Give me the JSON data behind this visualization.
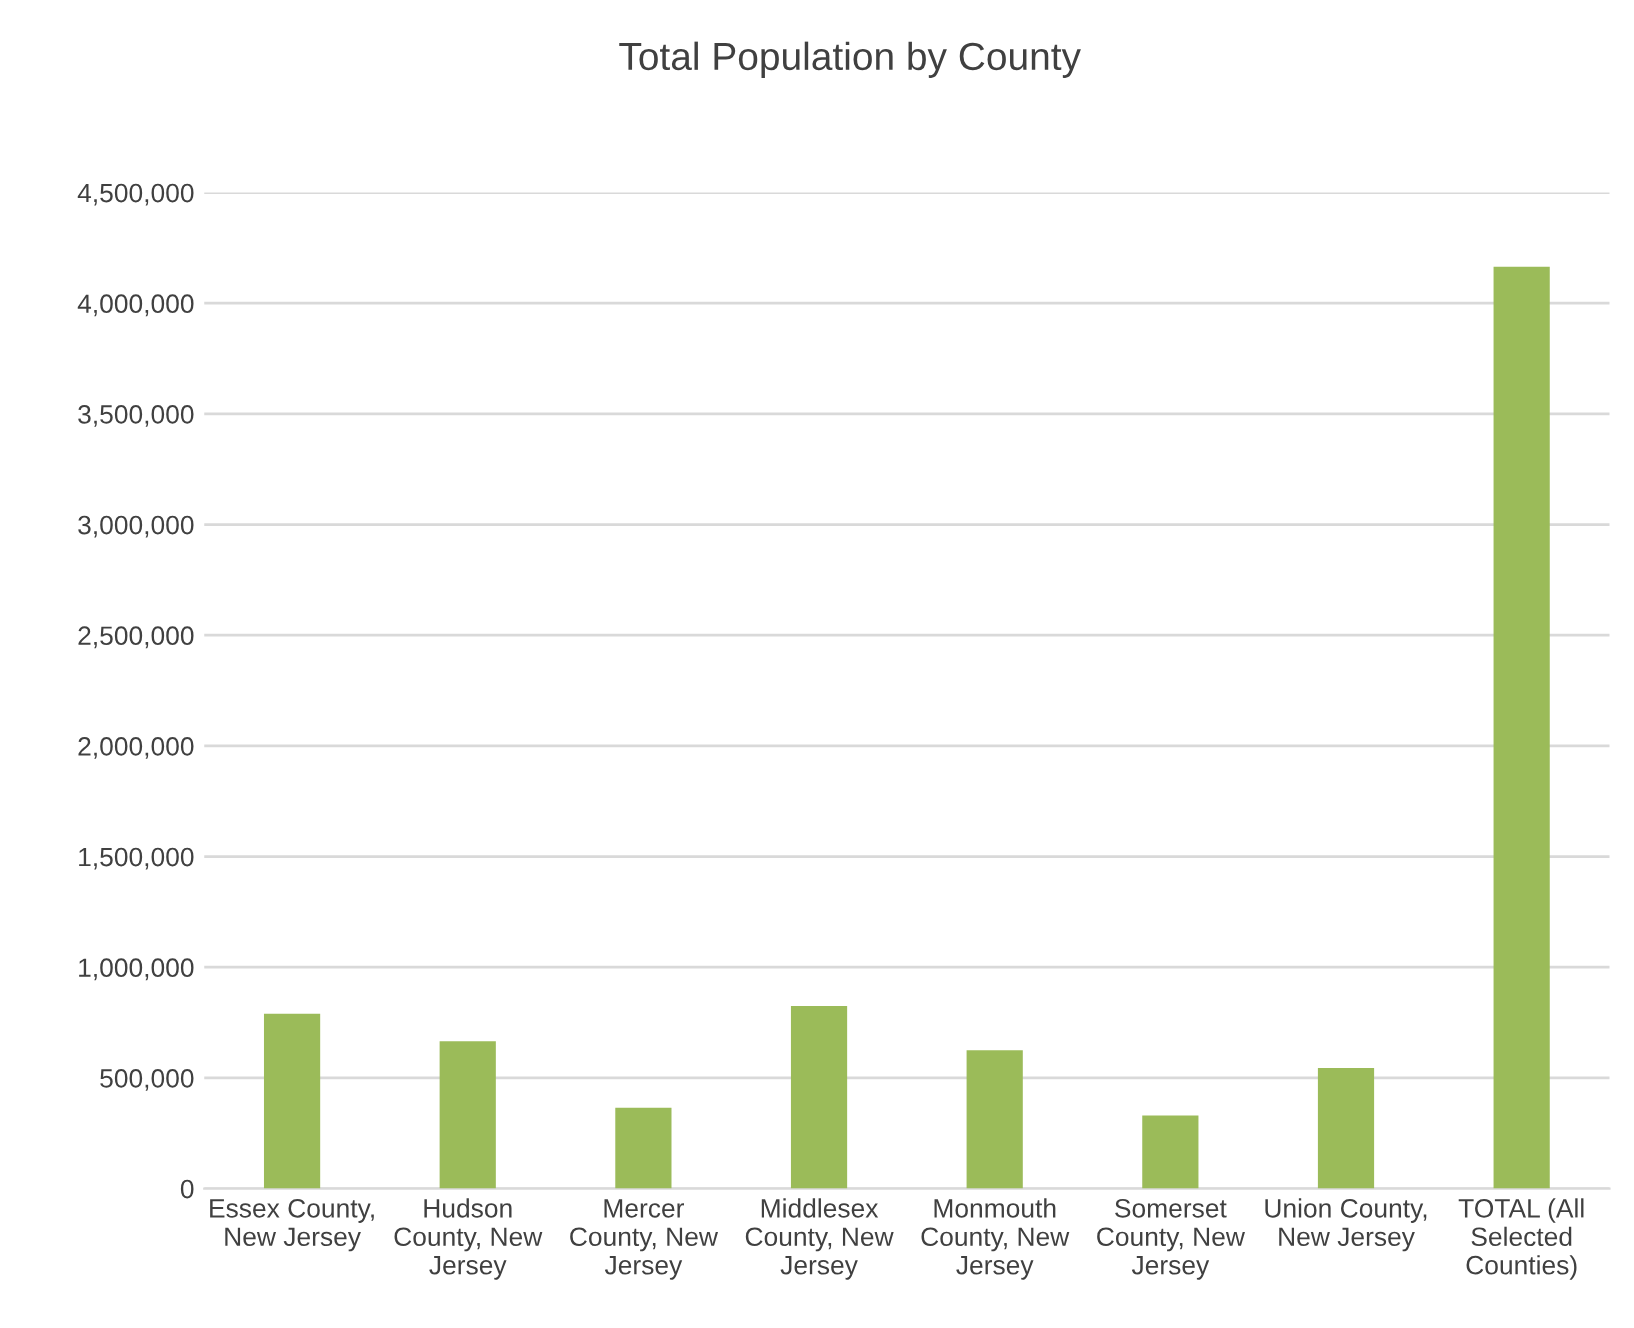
{
  "chart_data": {
    "type": "bar",
    "title": "Total Population by County",
    "categories": [
      "Essex County,\nNew Jersey",
      "Hudson\nCounty, New\nJersey",
      "Mercer\nCounty, New\nJersey",
      "Middlesex\nCounty, New\nJersey",
      "Monmouth\nCounty, New\nJersey",
      "Somerset\nCounty, New\nJersey",
      "Union County,\nNew Jersey",
      "TOTAL (All\nSelected\nCounties)"
    ],
    "values": [
      790000,
      665000,
      365000,
      825000,
      625000,
      330000,
      545000,
      4165000
    ],
    "color": "#9bbb59",
    "ylim": [
      0,
      4500000
    ],
    "yticks": [
      {
        "value": 0,
        "label": "0"
      },
      {
        "value": 500000,
        "label": "500,000"
      },
      {
        "value": 1000000,
        "label": "1,000,000"
      },
      {
        "value": 1500000,
        "label": "1,500,000"
      },
      {
        "value": 2000000,
        "label": "2,000,000"
      },
      {
        "value": 2500000,
        "label": "2,500,000"
      },
      {
        "value": 3000000,
        "label": "3,000,000"
      },
      {
        "value": 3500000,
        "label": "3,500,000"
      },
      {
        "value": 4000000,
        "label": "4,000,000"
      },
      {
        "value": 4500000,
        "label": "4,500,000"
      }
    ],
    "grid": "y"
  }
}
